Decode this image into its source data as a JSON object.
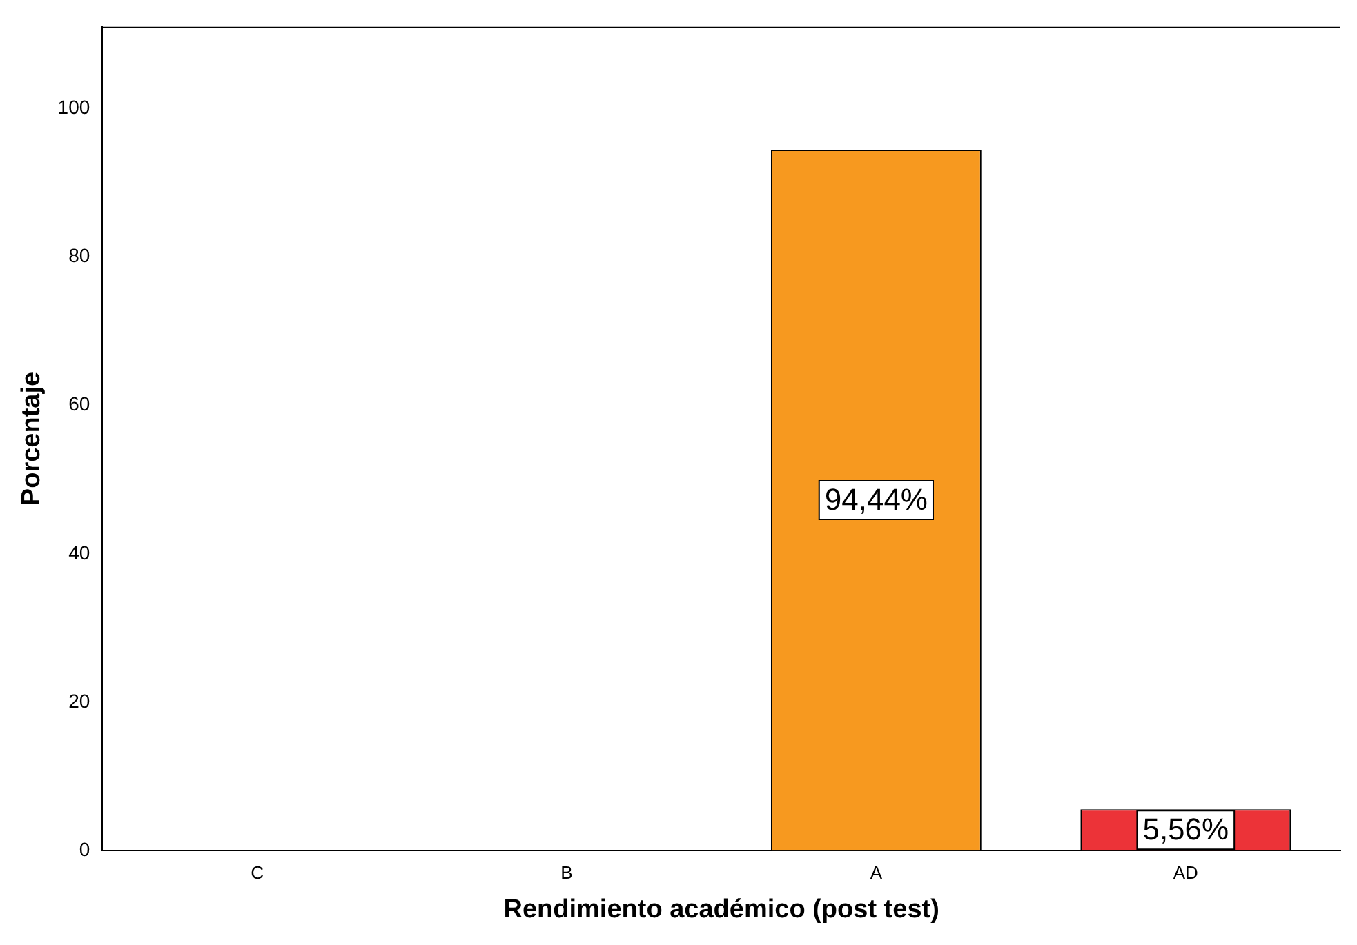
{
  "chart_data": {
    "type": "bar",
    "xlabel": "Rendimiento académico (post test)",
    "ylabel": "Porcentaje",
    "categories": [
      "C",
      "B",
      "A",
      "AD"
    ],
    "values": [
      0,
      0,
      94.44,
      5.56
    ],
    "colors": [
      "#f7991f",
      "#f7991f",
      "#f7991f",
      "#ec3338"
    ],
    "value_labels": [
      null,
      null,
      "94,44%",
      "5,56%"
    ],
    "ylim": [
      0,
      111
    ],
    "yticks": [
      0,
      20,
      40,
      60,
      80,
      100
    ],
    "grid": false,
    "legend": false
  }
}
